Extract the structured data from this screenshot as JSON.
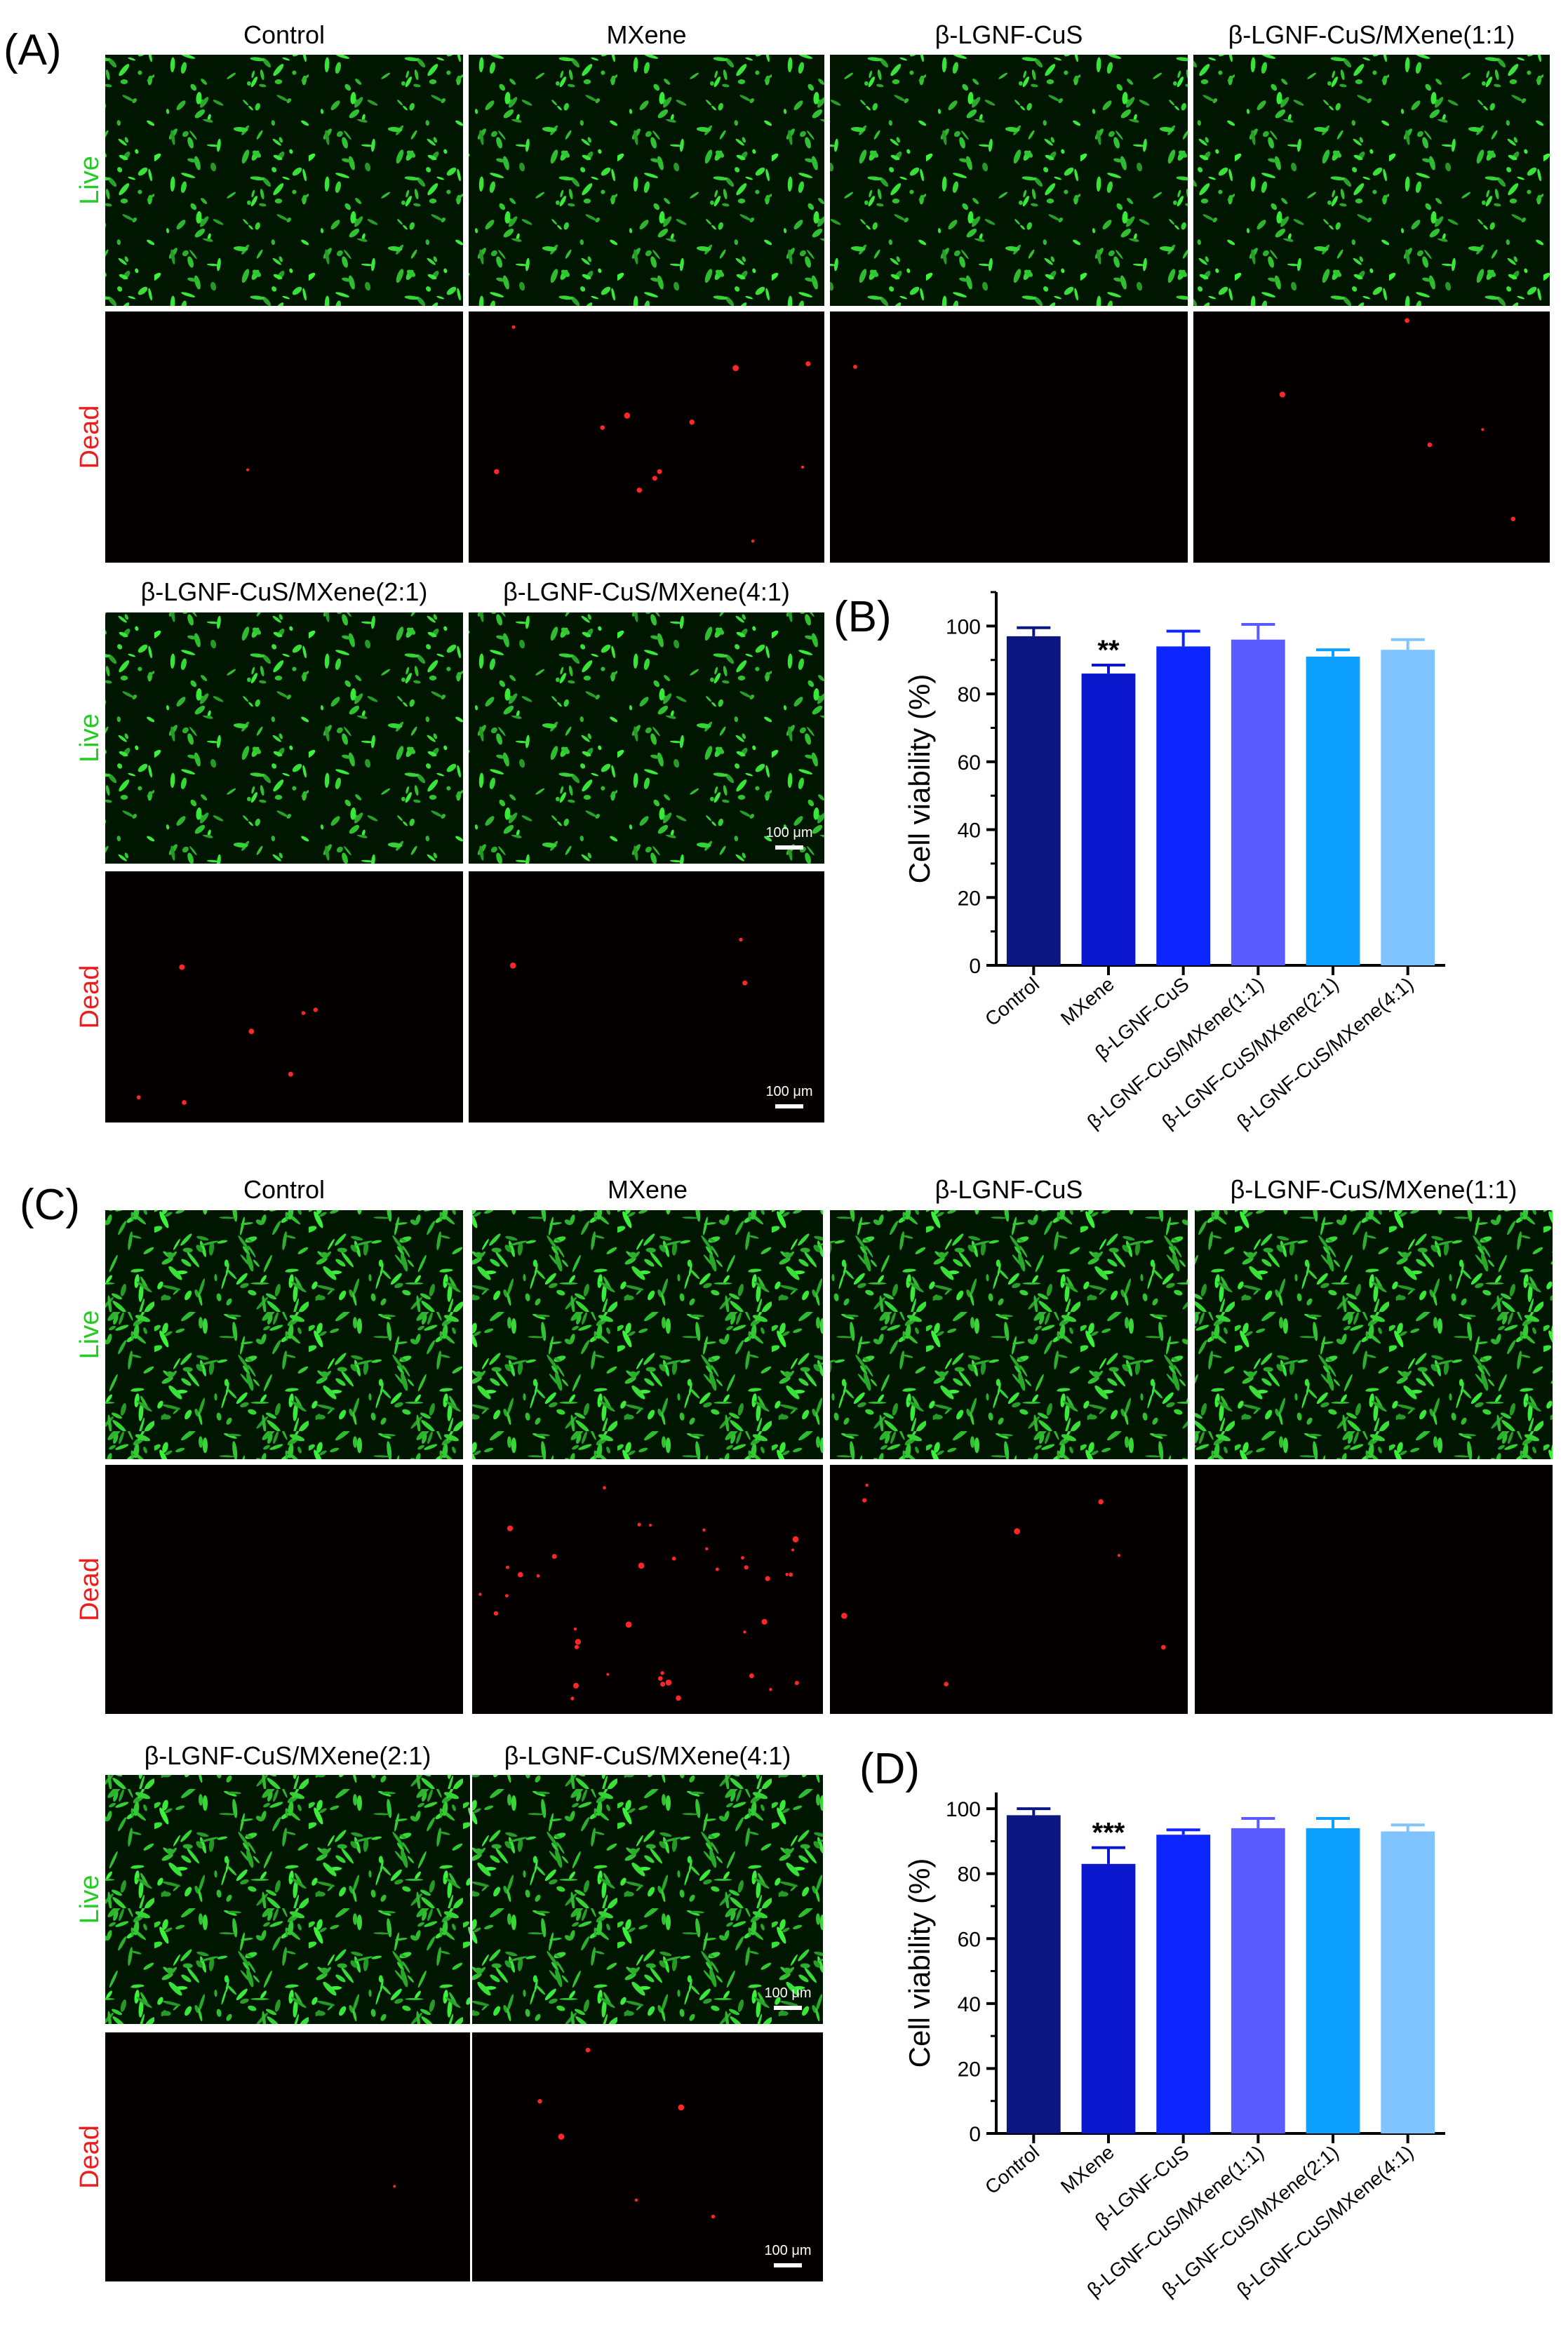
{
  "colors": {
    "live_label": "#22cc22",
    "dead_label": "#ee1c1c",
    "live_bg": "#001600",
    "live_cell": "#3fd93f",
    "dead_bg": "#050000",
    "dead_cell": "#ff2626",
    "bars": [
      "#0d1580",
      "#0a17cc",
      "#0d26ff",
      "#5a5cff",
      "#0da0ff",
      "#7fc3ff"
    ]
  },
  "panel_A": {
    "letter": "(A)",
    "top_groups": [
      "Control",
      "MXene",
      "β-LGNF-CuS",
      "β-LGNF-CuS/MXene(1:1)"
    ],
    "bottom_groups": [
      "β-LGNF-CuS/MXene(2:1)",
      "β-LGNF-CuS/MXene(4:1)"
    ],
    "row_labels": [
      "Live",
      "Dead"
    ],
    "scale_bar": "100 μm"
  },
  "panel_C": {
    "letter": "(C)",
    "top_groups": [
      "Control",
      "MXene",
      "β-LGNF-CuS",
      "β-LGNF-CuS/MXene(1:1)"
    ],
    "bottom_groups": [
      "β-LGNF-CuS/MXene(2:1)",
      "β-LGNF-CuS/MXene(4:1)"
    ],
    "row_labels": [
      "Live",
      "Dead"
    ],
    "scale_bar": "100 μm"
  },
  "chart_data": [
    {
      "panel": "(B)",
      "type": "bar",
      "categories": [
        "Control",
        "MXene",
        "β-LGNF-CuS",
        "β-LGNF-CuS/MXene(1:1)",
        "β-LGNF-CuS/MXene(2:1)",
        "β-LGNF-CuS/MXene(4:1)"
      ],
      "values": [
        97,
        86,
        94,
        96,
        91,
        93
      ],
      "errors": [
        2.5,
        2.5,
        4.5,
        4.5,
        2,
        3
      ],
      "annotations": [
        "",
        "**",
        "",
        "",
        "",
        ""
      ],
      "ylabel": "Cell viability (%)",
      "ylim": [
        0,
        110
      ],
      "yticks": [
        0,
        20,
        40,
        60,
        80,
        100
      ],
      "grid": false,
      "legend": "none"
    },
    {
      "panel": "(D)",
      "type": "bar",
      "categories": [
        "Control",
        "MXene",
        "β-LGNF-CuS",
        "β-LGNF-CuS/MXene(1:1)",
        "β-LGNF-CuS/MXene(2:1)",
        "β-LGNF-CuS/MXene(4:1)"
      ],
      "values": [
        98,
        83,
        92,
        94,
        94,
        93
      ],
      "errors": [
        2,
        5,
        1.5,
        3,
        3,
        2
      ],
      "annotations": [
        "",
        "***",
        "",
        "",
        "",
        ""
      ],
      "ylabel": "Cell viability (%)",
      "ylim": [
        0,
        105
      ],
      "yticks": [
        0,
        20,
        40,
        60,
        80,
        100
      ],
      "grid": false,
      "legend": "none"
    }
  ]
}
